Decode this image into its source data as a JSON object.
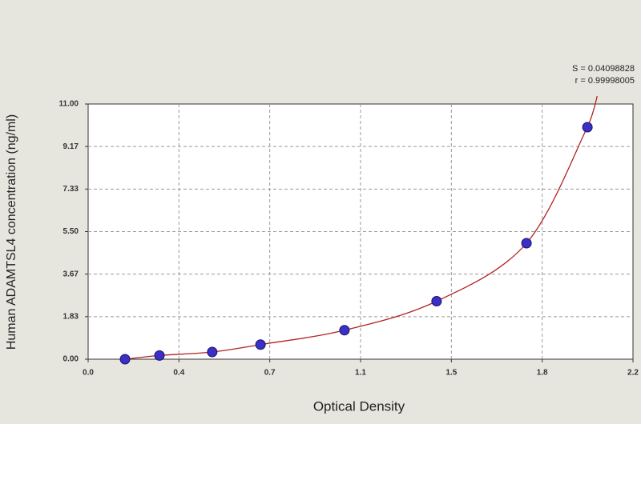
{
  "chart_data": {
    "type": "scatter",
    "annotations": [
      "S = 0.04098828",
      "r = 0.99998005"
    ],
    "x_label": "Optical Density",
    "y_label": "Human ADAMTSL4 concentration (ng/ml)",
    "x": [
      0.149,
      0.288,
      0.501,
      0.696,
      1.035,
      1.407,
      1.77,
      2.016
    ],
    "values": [
      0,
      0.16,
      0.31,
      0.63,
      1.25,
      2.5,
      5,
      10
    ],
    "color": "#3b2fc4",
    "fit_color": "#b22222",
    "xlim": [
      0,
      2.2
    ],
    "ylim": [
      0,
      11
    ],
    "xticks": [
      {
        "value": 0,
        "label": "0.0"
      },
      {
        "value": 0.3667,
        "label": "0.4"
      },
      {
        "value": 0.7333,
        "label": "0.7"
      },
      {
        "value": 1.1,
        "label": "1.1"
      },
      {
        "value": 1.4667,
        "label": "1.5"
      },
      {
        "value": 1.8333,
        "label": "1.8"
      },
      {
        "value": 2.2,
        "label": "2.2"
      }
    ],
    "yticks": [
      {
        "value": 0,
        "label": "0.00"
      },
      {
        "value": 1.8333,
        "label": "1.83"
      },
      {
        "value": 3.6667,
        "label": "3.67"
      },
      {
        "value": 5.5,
        "label": "5.50"
      },
      {
        "value": 7.3333,
        "label": "7.33"
      },
      {
        "value": 9.1667,
        "label": "9.17"
      },
      {
        "value": 11,
        "label": "11.00"
      }
    ],
    "grid": true
  }
}
